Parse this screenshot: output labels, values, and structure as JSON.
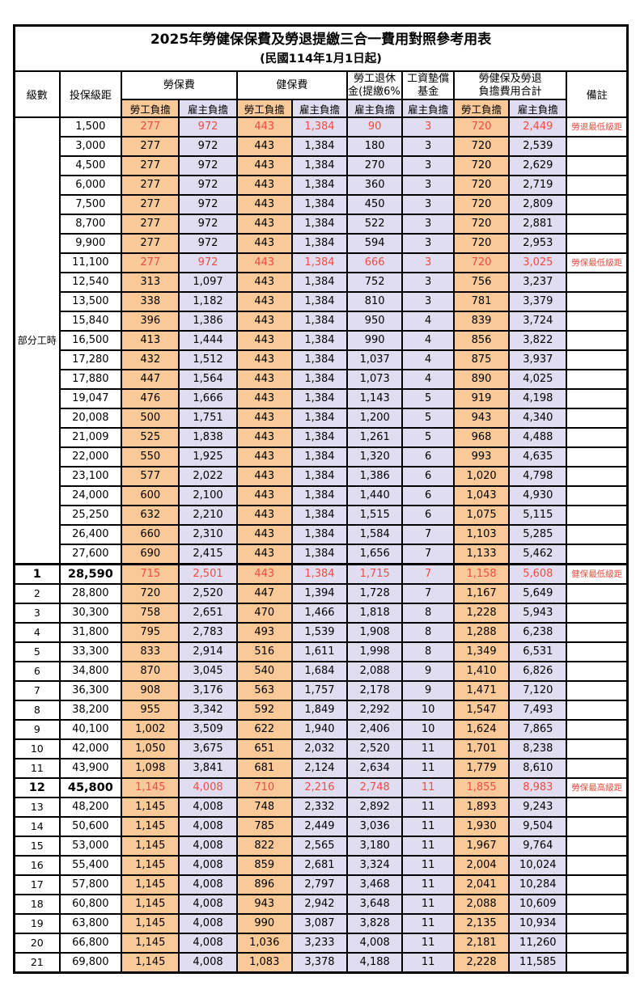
{
  "title": "2025年勞健保保費及勞退提繳三合一費用對照參考用表",
  "subtitle": "(民國114年1月1日起)",
  "header": {
    "level": "級數",
    "bracket": "投保級距",
    "labor_group": "勞保費",
    "health_group": "健保費",
    "pension_line1": "勞工退休",
    "pension_line2": "金(提繳6%)",
    "wage_fund_line1": "工資墊償",
    "wage_fund_line2": "基金",
    "total_line1": "勞健保及勞退",
    "total_line2": "負擔費用合計",
    "remark": "備註",
    "employee": "勞工負擔",
    "employer": "雇主負擔"
  },
  "part_time_label": "部分工時",
  "part_time_rowspan": 23,
  "colors": {
    "employee_bg": "#FAC998",
    "employer_bg": "#E0DDF0",
    "highlight_red": "#F14B42",
    "border": "#000000"
  },
  "rows": [
    {
      "level": "",
      "bracket": "1,500",
      "v": [
        "277",
        "972",
        "443",
        "1,384",
        "90",
        "3",
        "720",
        "2,449"
      ],
      "red": true,
      "note": "勞退最低級距"
    },
    {
      "level": "",
      "bracket": "3,000",
      "v": [
        "277",
        "972",
        "443",
        "1,384",
        "180",
        "3",
        "720",
        "2,539"
      ]
    },
    {
      "level": "",
      "bracket": "4,500",
      "v": [
        "277",
        "972",
        "443",
        "1,384",
        "270",
        "3",
        "720",
        "2,629"
      ]
    },
    {
      "level": "",
      "bracket": "6,000",
      "v": [
        "277",
        "972",
        "443",
        "1,384",
        "360",
        "3",
        "720",
        "2,719"
      ]
    },
    {
      "level": "",
      "bracket": "7,500",
      "v": [
        "277",
        "972",
        "443",
        "1,384",
        "450",
        "3",
        "720",
        "2,809"
      ]
    },
    {
      "level": "",
      "bracket": "8,700",
      "v": [
        "277",
        "972",
        "443",
        "1,384",
        "522",
        "3",
        "720",
        "2,881"
      ]
    },
    {
      "level": "",
      "bracket": "9,900",
      "v": [
        "277",
        "972",
        "443",
        "1,384",
        "594",
        "3",
        "720",
        "2,953"
      ]
    },
    {
      "level": "",
      "bracket": "11,100",
      "v": [
        "277",
        "972",
        "443",
        "1,384",
        "666",
        "3",
        "720",
        "3,025"
      ],
      "red": true,
      "note": "勞保最低級距"
    },
    {
      "level": "",
      "bracket": "12,540",
      "v": [
        "313",
        "1,097",
        "443",
        "1,384",
        "752",
        "3",
        "756",
        "3,237"
      ]
    },
    {
      "level": "",
      "bracket": "13,500",
      "v": [
        "338",
        "1,182",
        "443",
        "1,384",
        "810",
        "3",
        "781",
        "3,379"
      ]
    },
    {
      "level": "",
      "bracket": "15,840",
      "v": [
        "396",
        "1,386",
        "443",
        "1,384",
        "950",
        "4",
        "839",
        "3,724"
      ]
    },
    {
      "level": "",
      "bracket": "16,500",
      "v": [
        "413",
        "1,444",
        "443",
        "1,384",
        "990",
        "4",
        "856",
        "3,822"
      ]
    },
    {
      "level": "",
      "bracket": "17,280",
      "v": [
        "432",
        "1,512",
        "443",
        "1,384",
        "1,037",
        "4",
        "875",
        "3,937"
      ]
    },
    {
      "level": "",
      "bracket": "17,880",
      "v": [
        "447",
        "1,564",
        "443",
        "1,384",
        "1,073",
        "4",
        "890",
        "4,025"
      ]
    },
    {
      "level": "",
      "bracket": "19,047",
      "v": [
        "476",
        "1,666",
        "443",
        "1,384",
        "1,143",
        "5",
        "919",
        "4,198"
      ]
    },
    {
      "level": "",
      "bracket": "20,008",
      "v": [
        "500",
        "1,751",
        "443",
        "1,384",
        "1,200",
        "5",
        "943",
        "4,340"
      ]
    },
    {
      "level": "",
      "bracket": "21,009",
      "v": [
        "525",
        "1,838",
        "443",
        "1,384",
        "1,261",
        "5",
        "968",
        "4,488"
      ]
    },
    {
      "level": "",
      "bracket": "22,000",
      "v": [
        "550",
        "1,925",
        "443",
        "1,384",
        "1,320",
        "6",
        "993",
        "4,635"
      ]
    },
    {
      "level": "",
      "bracket": "23,100",
      "v": [
        "577",
        "2,022",
        "443",
        "1,384",
        "1,386",
        "6",
        "1,020",
        "4,798"
      ]
    },
    {
      "level": "",
      "bracket": "24,000",
      "v": [
        "600",
        "2,100",
        "443",
        "1,384",
        "1,440",
        "6",
        "1,043",
        "4,930"
      ]
    },
    {
      "level": "",
      "bracket": "25,250",
      "v": [
        "632",
        "2,210",
        "443",
        "1,384",
        "1,515",
        "6",
        "1,075",
        "5,115"
      ]
    },
    {
      "level": "",
      "bracket": "26,400",
      "v": [
        "660",
        "2,310",
        "443",
        "1,384",
        "1,584",
        "7",
        "1,103",
        "5,285"
      ]
    },
    {
      "level": "",
      "bracket": "27,600",
      "v": [
        "690",
        "2,415",
        "443",
        "1,384",
        "1,656",
        "7",
        "1,133",
        "5,462"
      ]
    },
    {
      "level": "1",
      "bracket": "28,590",
      "v": [
        "715",
        "2,501",
        "443",
        "1,384",
        "1,715",
        "7",
        "1,158",
        "5,608"
      ],
      "red": true,
      "bold": true,
      "sep": true,
      "note": "健保最低級距"
    },
    {
      "level": "2",
      "bracket": "28,800",
      "v": [
        "720",
        "2,520",
        "447",
        "1,394",
        "1,728",
        "7",
        "1,167",
        "5,649"
      ]
    },
    {
      "level": "3",
      "bracket": "30,300",
      "v": [
        "758",
        "2,651",
        "470",
        "1,466",
        "1,818",
        "8",
        "1,228",
        "5,943"
      ]
    },
    {
      "level": "4",
      "bracket": "31,800",
      "v": [
        "795",
        "2,783",
        "493",
        "1,539",
        "1,908",
        "8",
        "1,288",
        "6,238"
      ]
    },
    {
      "level": "5",
      "bracket": "33,300",
      "v": [
        "833",
        "2,914",
        "516",
        "1,611",
        "1,998",
        "8",
        "1,349",
        "6,531"
      ]
    },
    {
      "level": "6",
      "bracket": "34,800",
      "v": [
        "870",
        "3,045",
        "540",
        "1,684",
        "2,088",
        "9",
        "1,410",
        "6,826"
      ]
    },
    {
      "level": "7",
      "bracket": "36,300",
      "v": [
        "908",
        "3,176",
        "563",
        "1,757",
        "2,178",
        "9",
        "1,471",
        "7,120"
      ]
    },
    {
      "level": "8",
      "bracket": "38,200",
      "v": [
        "955",
        "3,342",
        "592",
        "1,849",
        "2,292",
        "10",
        "1,547",
        "7,493"
      ]
    },
    {
      "level": "9",
      "bracket": "40,100",
      "v": [
        "1,002",
        "3,509",
        "622",
        "1,940",
        "2,406",
        "10",
        "1,624",
        "7,865"
      ]
    },
    {
      "level": "10",
      "bracket": "42,000",
      "v": [
        "1,050",
        "3,675",
        "651",
        "2,032",
        "2,520",
        "11",
        "1,701",
        "8,238"
      ]
    },
    {
      "level": "11",
      "bracket": "43,900",
      "v": [
        "1,098",
        "3,841",
        "681",
        "2,124",
        "2,634",
        "11",
        "1,779",
        "8,610"
      ]
    },
    {
      "level": "12",
      "bracket": "45,800",
      "v": [
        "1,145",
        "4,008",
        "710",
        "2,216",
        "2,748",
        "11",
        "1,855",
        "8,983"
      ],
      "red": true,
      "bold": true,
      "note": "勞保最高級距"
    },
    {
      "level": "13",
      "bracket": "48,200",
      "v": [
        "1,145",
        "4,008",
        "748",
        "2,332",
        "2,892",
        "11",
        "1,893",
        "9,243"
      ]
    },
    {
      "level": "14",
      "bracket": "50,600",
      "v": [
        "1,145",
        "4,008",
        "785",
        "2,449",
        "3,036",
        "11",
        "1,930",
        "9,504"
      ]
    },
    {
      "level": "15",
      "bracket": "53,000",
      "v": [
        "1,145",
        "4,008",
        "822",
        "2,565",
        "3,180",
        "11",
        "1,967",
        "9,764"
      ]
    },
    {
      "level": "16",
      "bracket": "55,400",
      "v": [
        "1,145",
        "4,008",
        "859",
        "2,681",
        "3,324",
        "11",
        "2,004",
        "10,024"
      ]
    },
    {
      "level": "17",
      "bracket": "57,800",
      "v": [
        "1,145",
        "4,008",
        "896",
        "2,797",
        "3,468",
        "11",
        "2,041",
        "10,284"
      ]
    },
    {
      "level": "18",
      "bracket": "60,800",
      "v": [
        "1,145",
        "4,008",
        "943",
        "2,942",
        "3,648",
        "11",
        "2,088",
        "10,609"
      ]
    },
    {
      "level": "19",
      "bracket": "63,800",
      "v": [
        "1,145",
        "4,008",
        "990",
        "3,087",
        "3,828",
        "11",
        "2,135",
        "10,934"
      ]
    },
    {
      "level": "20",
      "bracket": "66,800",
      "v": [
        "1,145",
        "4,008",
        "1,036",
        "3,233",
        "4,008",
        "11",
        "2,181",
        "11,260"
      ]
    },
    {
      "level": "21",
      "bracket": "69,800",
      "v": [
        "1,145",
        "4,008",
        "1,083",
        "3,378",
        "4,188",
        "11",
        "2,228",
        "11,585"
      ]
    }
  ]
}
